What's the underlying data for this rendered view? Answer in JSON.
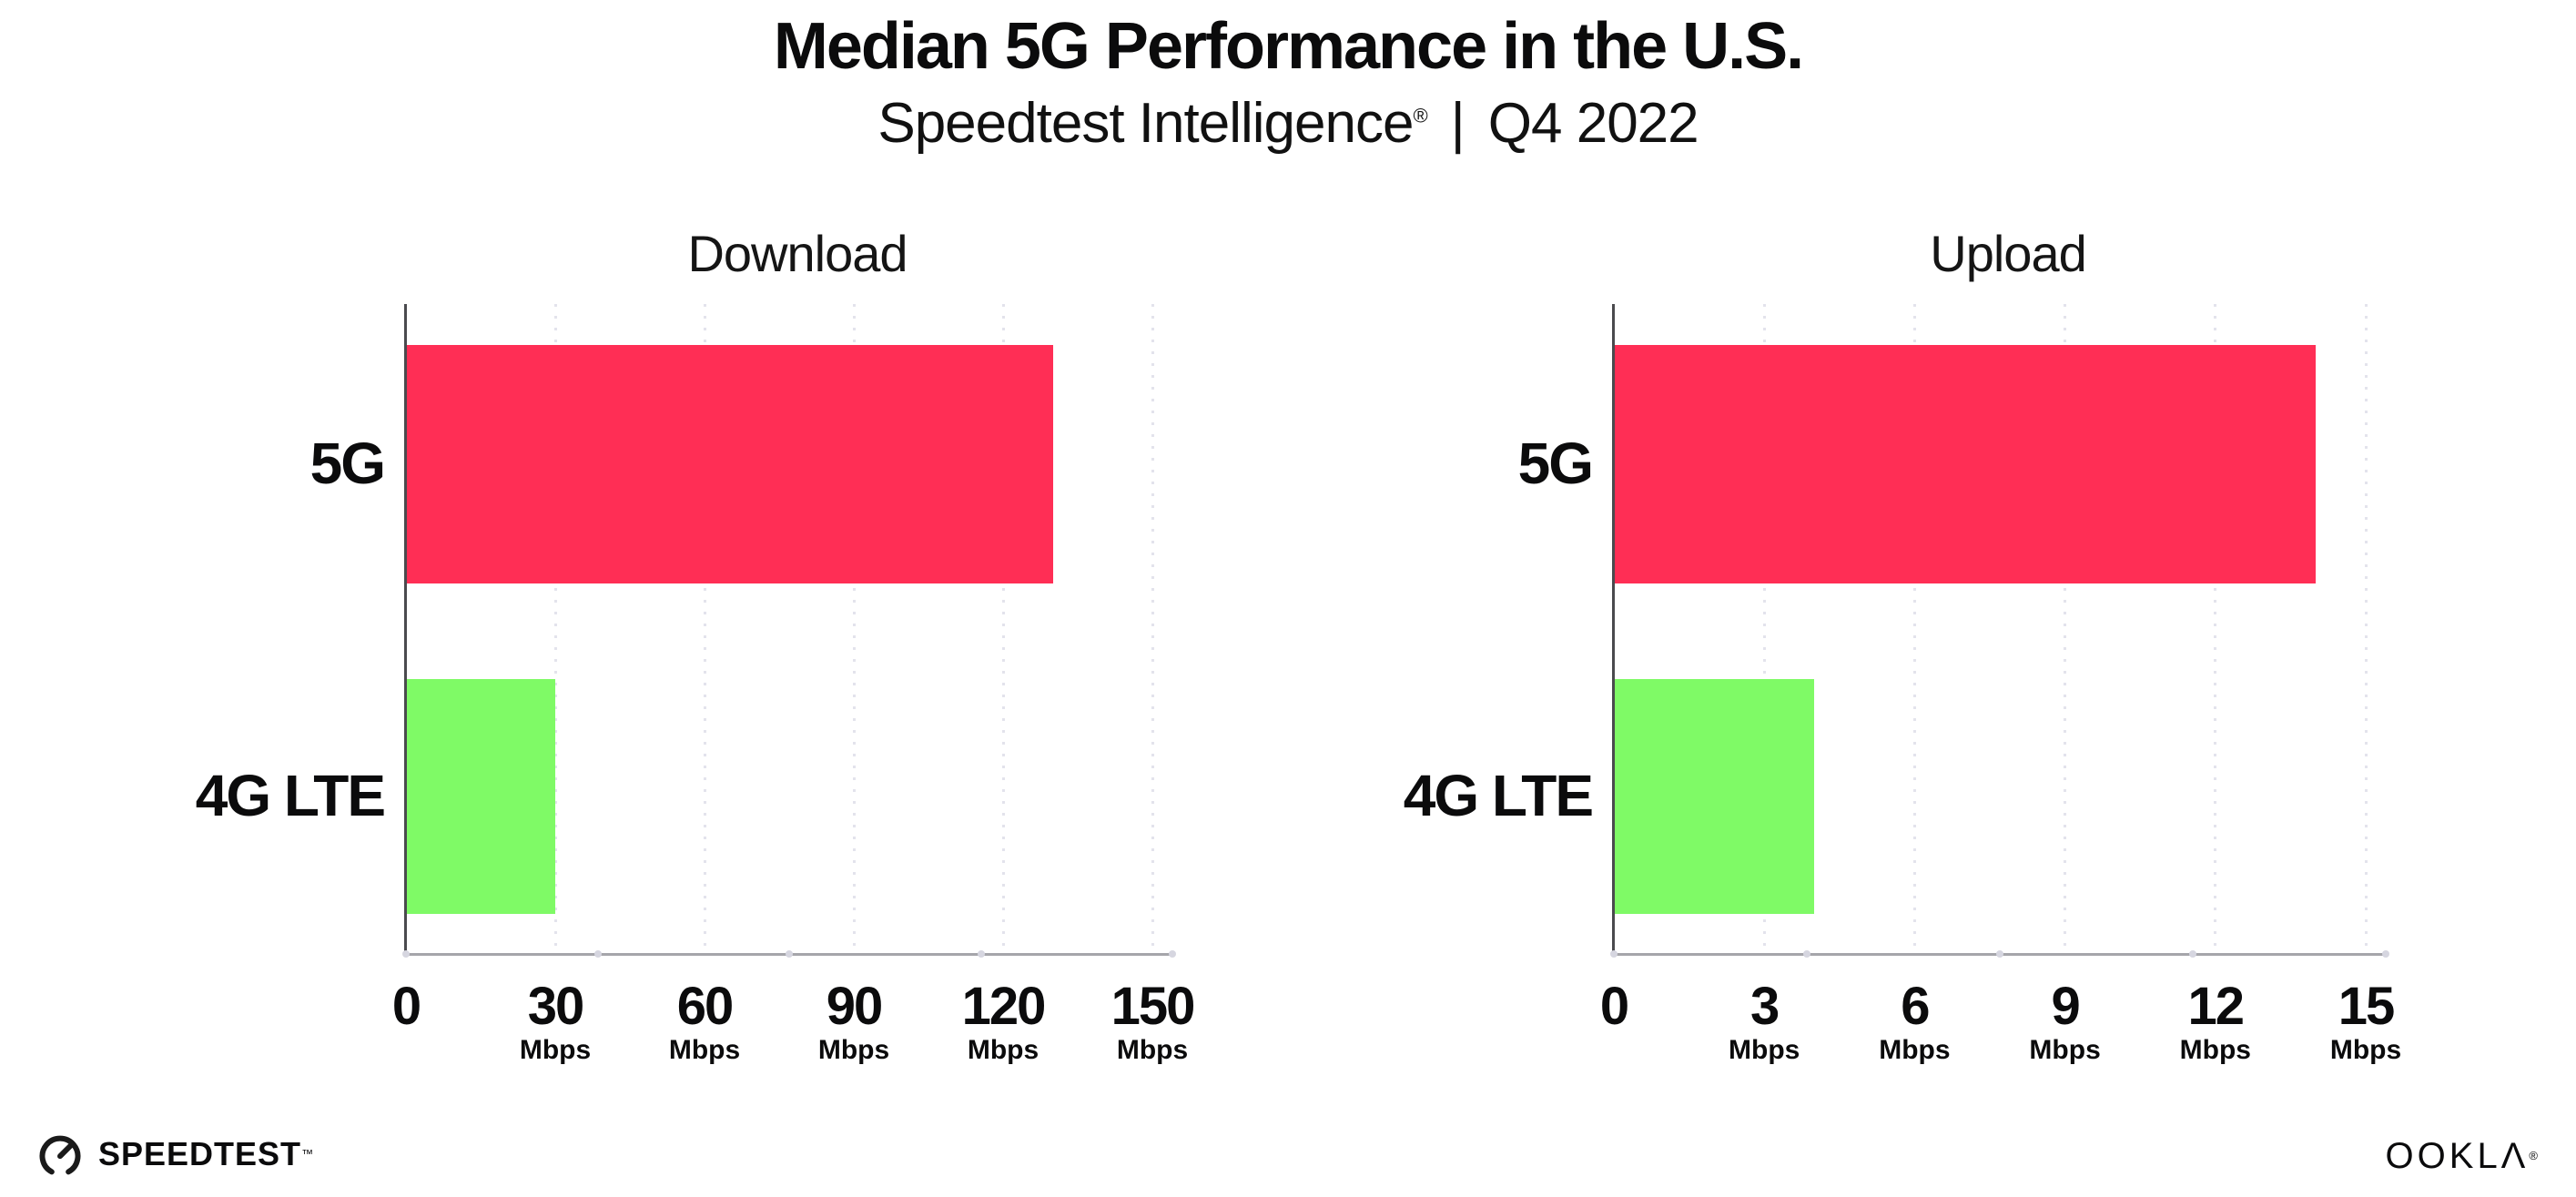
{
  "header": {
    "title": "Median 5G Performance in the U.S.",
    "subtitle_brand": "Speedtest Intelligence",
    "subtitle_reg": "®",
    "subtitle_sep": "|",
    "subtitle_period": "Q4 2022"
  },
  "colors": {
    "bar_5g": "#FF2E55",
    "bar_4g": "#7FFA66",
    "gridline": "#E3E3EC",
    "axis_line": "#A5A5AA",
    "spine": "#4A4A4E",
    "text": "#0B0B0C"
  },
  "chart_data": [
    {
      "type": "bar",
      "orientation": "horizontal",
      "title": "Download",
      "categories": [
        "5G",
        "4G LTE"
      ],
      "values": [
        130,
        30
      ],
      "unit": "Mbps",
      "xlim": [
        0,
        150
      ],
      "xticks": [
        0,
        30,
        60,
        90,
        120,
        150
      ],
      "tick_unit_label": "Mbps",
      "grid": "dotted-vertical",
      "series_colors_key": [
        "bar_5g",
        "bar_4g"
      ],
      "legend": "none"
    },
    {
      "type": "bar",
      "orientation": "horizontal",
      "title": "Upload",
      "categories": [
        "5G",
        "4G LTE"
      ],
      "values": [
        14,
        4
      ],
      "unit": "Mbps",
      "xlim": [
        0,
        15
      ],
      "xticks": [
        0,
        3,
        6,
        9,
        12,
        15
      ],
      "tick_unit_label": "Mbps",
      "grid": "dotted-vertical",
      "series_colors_key": [
        "bar_5g",
        "bar_4g"
      ],
      "legend": "none"
    }
  ],
  "footer": {
    "speedtest_label": "SPEEDTEST",
    "speedtest_tm": "™",
    "ookla_label": "OOKLΛ",
    "ookla_reg": "®"
  }
}
